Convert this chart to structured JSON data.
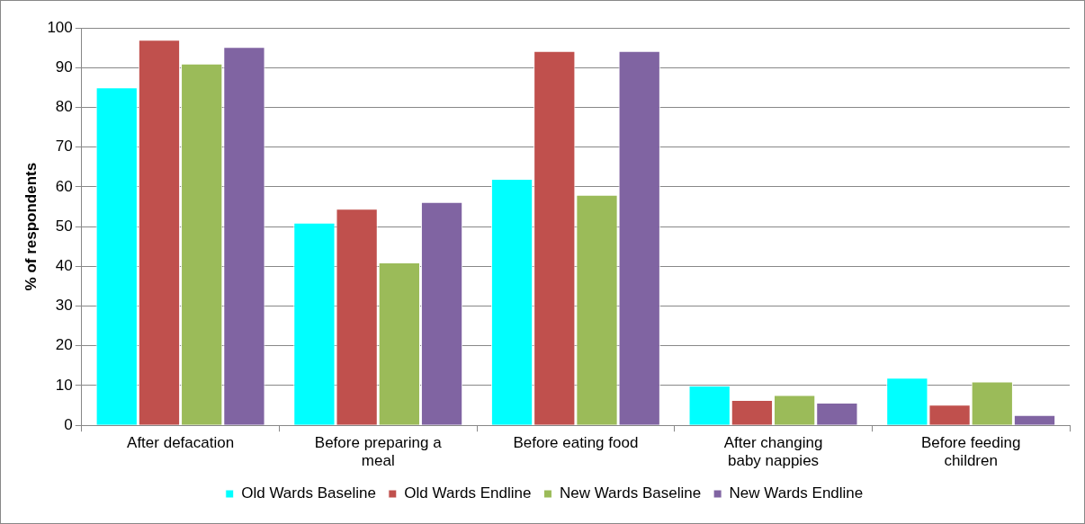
{
  "chart_data": {
    "type": "bar",
    "ylabel": "% of respondents",
    "categories": [
      "After defacation",
      "Before preparing a meal",
      "Before eating food",
      "After changing baby nappies",
      "Before feeding children"
    ],
    "series": [
      {
        "name": "Old Wards Baseline",
        "color": "#00ffff",
        "values": [
          85,
          51,
          62,
          10,
          12
        ]
      },
      {
        "name": "Old Wards Endline",
        "color": "#c0504d",
        "values": [
          97,
          54.5,
          94.2,
          6.4,
          5.2
        ]
      },
      {
        "name": "New Wards Baseline",
        "color": "#9bbb59",
        "values": [
          91,
          41,
          58,
          7.6,
          11
        ]
      },
      {
        "name": "New Wards Endline",
        "color": "#8064a2",
        "values": [
          95.2,
          56.2,
          94.2,
          5.7,
          2.6
        ]
      }
    ],
    "ylim": [
      0,
      100
    ],
    "yticks": [
      0,
      10,
      20,
      30,
      40,
      50,
      60,
      70,
      80,
      90,
      100
    ],
    "grid": "y",
    "legend": "bottom"
  }
}
